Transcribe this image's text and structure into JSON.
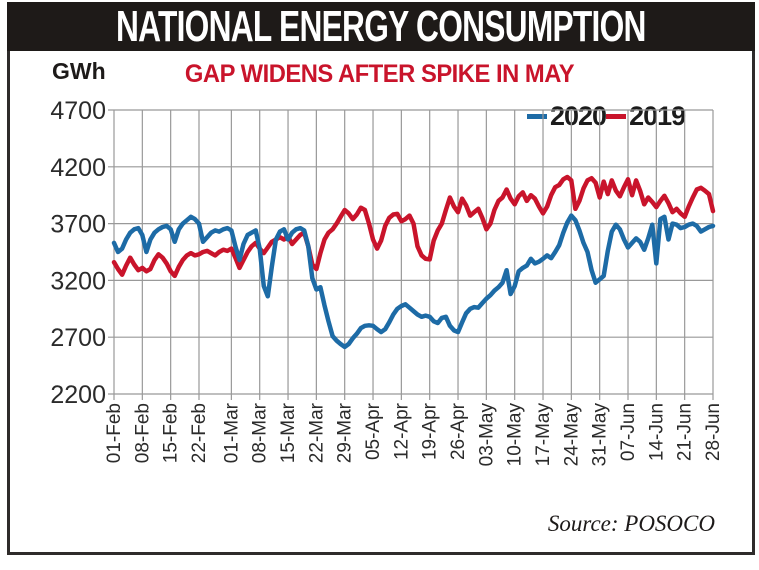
{
  "header": {
    "title": "NATIONAL ENERGY CONSUMPTION"
  },
  "chart": {
    "unit": "GWh",
    "subtitle": "GAP WIDENS AFTER SPIKE IN MAY",
    "source": "Source: POSOCO",
    "legend": [
      {
        "label": "2020",
        "color": "#1d6ba6"
      },
      {
        "label": "2019",
        "color": "#c9142b"
      }
    ]
  },
  "colors": {
    "title_bar": "#1e1a18",
    "accent_red": "#c9142b",
    "line_2020": "#1d6ba6",
    "line_2019": "#c9142b",
    "grid": "#999999",
    "tick_text": "#2b2b2b"
  },
  "chart_data": {
    "type": "line",
    "title": "GAP WIDENS AFTER SPIKE IN MAY",
    "ylabel": "GWh",
    "ylim": [
      2200,
      4700
    ],
    "yticks": [
      4700,
      4200,
      3700,
      3200,
      2700,
      2200
    ],
    "x_tick_labels": [
      "01-Feb",
      "08-Feb",
      "15-Feb",
      "22-Feb",
      "01-Mar",
      "08-Mar",
      "15-Mar",
      "22-Mar",
      "29-Mar",
      "05-Apr",
      "12-Apr",
      "19-Apr",
      "26-Apr",
      "03-May",
      "10-May",
      "17-May",
      "24-May",
      "31-May",
      "07-Jun",
      "14-Jun",
      "21-Jun",
      "28-Jun"
    ],
    "x_tick_days": [
      0,
      7,
      14,
      21,
      29,
      36,
      43,
      50,
      57,
      64,
      71,
      78,
      85,
      92,
      99,
      106,
      113,
      120,
      127,
      134,
      141,
      148
    ],
    "x_range_days": [
      0,
      148
    ],
    "grid": true,
    "legend_position": "top-right",
    "series": [
      {
        "name": "2019",
        "color": "#c9142b",
        "values": [
          3360,
          3300,
          3250,
          3330,
          3400,
          3340,
          3290,
          3310,
          3280,
          3300,
          3380,
          3430,
          3400,
          3350,
          3280,
          3240,
          3320,
          3380,
          3420,
          3440,
          3420,
          3430,
          3450,
          3460,
          3440,
          3420,
          3450,
          3470,
          3460,
          3480,
          3400,
          3310,
          3380,
          3450,
          3500,
          3530,
          3480,
          3440,
          3490,
          3540,
          3560,
          3580,
          3560,
          3590,
          3520,
          3560,
          3600,
          3620,
          3500,
          3340,
          3300,
          3440,
          3560,
          3620,
          3650,
          3700,
          3760,
          3820,
          3790,
          3740,
          3780,
          3840,
          3820,
          3700,
          3560,
          3480,
          3550,
          3680,
          3750,
          3780,
          3785,
          3720,
          3740,
          3770,
          3700,
          3500,
          3420,
          3390,
          3385,
          3550,
          3640,
          3700,
          3820,
          3930,
          3850,
          3800,
          3920,
          3860,
          3770,
          3800,
          3830,
          3750,
          3650,
          3700,
          3820,
          3900,
          3930,
          4000,
          3920,
          3870,
          3940,
          3975,
          3900,
          3950,
          3920,
          3850,
          3790,
          3850,
          3950,
          4020,
          4040,
          4090,
          4110,
          4080,
          3830,
          3900,
          4010,
          4080,
          4100,
          4060,
          3930,
          4070,
          3960,
          4080,
          3990,
          3940,
          4020,
          4090,
          3950,
          4080,
          3990,
          3870,
          3930,
          3890,
          3845,
          3900,
          3945,
          3880,
          3800,
          3830,
          3790,
          3760,
          3850,
          3930,
          4000,
          4015,
          3990,
          3960,
          3810
        ]
      },
      {
        "name": "2020",
        "color": "#1d6ba6",
        "values": [
          3530,
          3450,
          3480,
          3560,
          3620,
          3650,
          3660,
          3600,
          3450,
          3560,
          3620,
          3650,
          3670,
          3680,
          3650,
          3540,
          3650,
          3700,
          3730,
          3760,
          3740,
          3700,
          3540,
          3580,
          3620,
          3640,
          3630,
          3650,
          3660,
          3640,
          3500,
          3380,
          3520,
          3600,
          3620,
          3640,
          3480,
          3150,
          3060,
          3320,
          3560,
          3630,
          3650,
          3560,
          3620,
          3650,
          3660,
          3640,
          3500,
          3220,
          3120,
          3140,
          2980,
          2840,
          2710,
          2670,
          2640,
          2615,
          2640,
          2690,
          2730,
          2780,
          2800,
          2805,
          2800,
          2770,
          2745,
          2770,
          2830,
          2900,
          2950,
          2975,
          2990,
          2960,
          2930,
          2900,
          2880,
          2890,
          2880,
          2840,
          2825,
          2870,
          2880,
          2800,
          2760,
          2745,
          2830,
          2910,
          2950,
          2965,
          2960,
          3000,
          3040,
          3070,
          3110,
          3140,
          3180,
          3290,
          3080,
          3150,
          3280,
          3310,
          3330,
          3390,
          3350,
          3365,
          3390,
          3420,
          3395,
          3450,
          3510,
          3620,
          3710,
          3770,
          3730,
          3640,
          3530,
          3450,
          3290,
          3180,
          3210,
          3240,
          3460,
          3630,
          3690,
          3650,
          3560,
          3490,
          3530,
          3570,
          3540,
          3470,
          3570,
          3690,
          3350,
          3740,
          3760,
          3560,
          3700,
          3690,
          3660,
          3670,
          3690,
          3700,
          3680,
          3630,
          3650,
          3670,
          3680
        ]
      }
    ],
    "source": "POSOCO"
  }
}
